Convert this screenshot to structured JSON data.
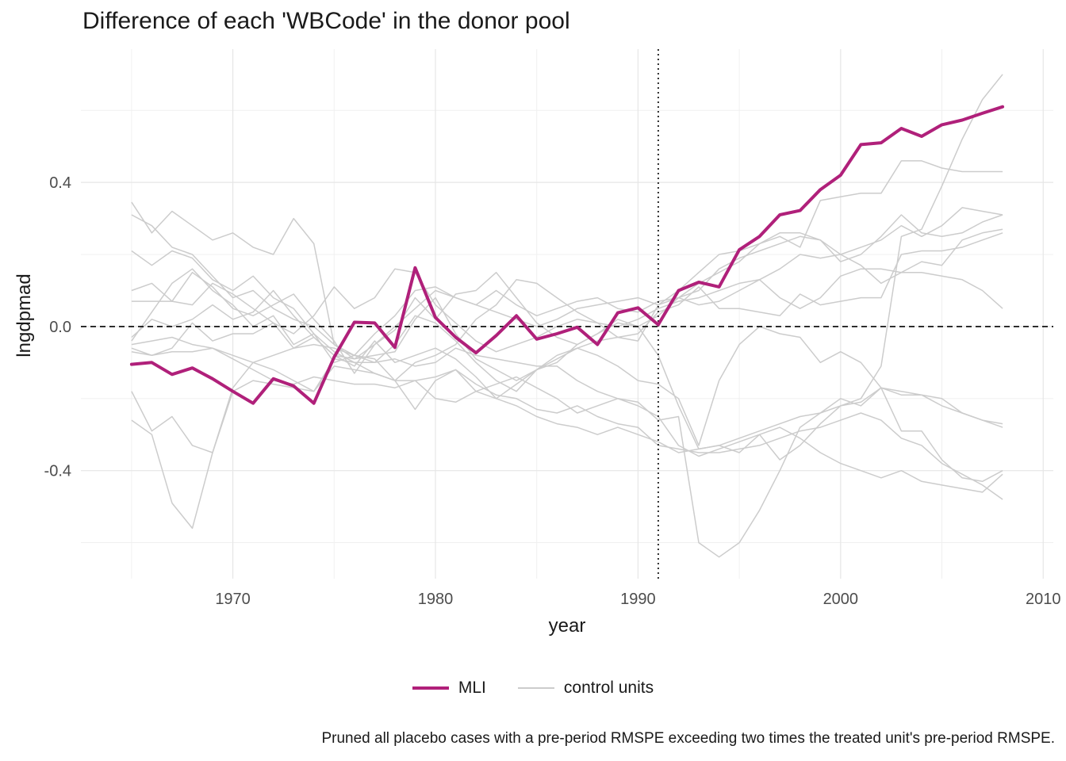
{
  "chart_data": {
    "type": "line",
    "title": "Difference of each 'WBCode' in the donor pool",
    "xlabel": "year",
    "ylabel": "lngdpmad",
    "xlim": [
      1962.5,
      2010.5
    ],
    "ylim": [
      -0.7,
      0.77
    ],
    "x_ticks": [
      1970,
      1980,
      1990,
      2000,
      2010
    ],
    "y_ticks": [
      -0.4,
      0.0,
      0.4
    ],
    "x_tick_labels": [
      "1970",
      "1980",
      "1990",
      "2000",
      "2010"
    ],
    "y_tick_labels": [
      "-0.4",
      "0.0",
      "0.4"
    ],
    "grid": true,
    "hline": 0.0,
    "vline": 1991,
    "legend_position": "bottom",
    "caption": "Pruned all placebo cases with a pre-period RMSPE exceeding two times the treated unit's pre-period RMSPE.",
    "treated": {
      "name": "MLI",
      "color": "#b0207a",
      "x": [
        1965,
        1966,
        1967,
        1968,
        1969,
        1970,
        1971,
        1972,
        1973,
        1974,
        1975,
        1976,
        1977,
        1978,
        1979,
        1980,
        1981,
        1982,
        1983,
        1984,
        1985,
        1986,
        1987,
        1988,
        1989,
        1990,
        1991,
        1992,
        1993,
        1994,
        1995,
        1996,
        1997,
        1998,
        1999,
        2000,
        2001,
        2002,
        2003,
        2004,
        2005,
        2006,
        2007,
        2008
      ],
      "y": [
        -0.105,
        -0.1,
        -0.133,
        -0.115,
        -0.145,
        -0.18,
        -0.213,
        -0.145,
        -0.165,
        -0.213,
        -0.085,
        0.012,
        0.01,
        -0.058,
        0.163,
        0.025,
        -0.03,
        -0.073,
        -0.025,
        0.03,
        -0.035,
        -0.02,
        -0.002,
        -0.05,
        0.038,
        0.052,
        0.005,
        0.1,
        0.123,
        0.11,
        0.213,
        0.25,
        0.31,
        0.322,
        0.38,
        0.42,
        0.505,
        0.51,
        0.55,
        0.528,
        0.56,
        0.573,
        0.592,
        0.61
      ]
    },
    "controls": {
      "name": "control units",
      "color": "#cccccc",
      "x_start": 1965,
      "series": [
        {
          "y": [
            0.345,
            0.26,
            0.32,
            0.28,
            0.24,
            0.26,
            0.22,
            0.2,
            0.3,
            0.23,
            -0.05,
            -0.08,
            -0.09,
            -0.15,
            -0.23,
            -0.15,
            -0.12,
            -0.18,
            -0.2,
            -0.22,
            -0.25,
            -0.27,
            -0.28,
            -0.3,
            -0.28,
            -0.3,
            -0.32,
            -0.35,
            -0.34,
            -0.33,
            -0.31,
            -0.29,
            -0.27,
            -0.25,
            -0.24,
            -0.22,
            -0.2,
            -0.11,
            0.25,
            0.27,
            0.39,
            0.52,
            0.63,
            0.7
          ]
        },
        {
          "y": [
            0.31,
            0.28,
            0.22,
            0.2,
            0.14,
            0.08,
            0.1,
            0.05,
            0.02,
            0.0,
            -0.05,
            -0.09,
            -0.05,
            0.0,
            0.05,
            0.1,
            0.08,
            0.06,
            0.04,
            0.02,
            0.0,
            0.02,
            0.05,
            0.06,
            0.07,
            0.08,
            0.06,
            0.08,
            0.1,
            0.16,
            0.19,
            0.21,
            0.23,
            0.25,
            0.24,
            0.18,
            0.2,
            0.25,
            0.31,
            0.26,
            0.25,
            0.26,
            0.29,
            0.31
          ]
        },
        {
          "y": [
            0.21,
            0.17,
            0.21,
            0.19,
            0.13,
            0.1,
            0.14,
            0.08,
            0.05,
            -0.02,
            -0.1,
            -0.08,
            -0.02,
            0.03,
            0.1,
            0.11,
            0.08,
            0.06,
            0.1,
            0.06,
            0.03,
            0.05,
            0.07,
            0.08,
            0.05,
            0.04,
            0.07,
            0.08,
            0.06,
            0.07,
            0.1,
            0.13,
            0.16,
            0.2,
            0.19,
            0.2,
            0.22,
            0.24,
            0.28,
            0.25,
            0.28,
            0.33,
            0.32,
            0.31
          ]
        },
        {
          "y": [
            0.1,
            0.12,
            0.07,
            0.15,
            0.11,
            0.05,
            0.03,
            0.06,
            0.09,
            0.02,
            -0.04,
            -0.13,
            -0.05,
            -0.01,
            0.08,
            0.02,
            0.09,
            0.1,
            0.15,
            0.08,
            0.01,
            -0.03,
            -0.05,
            -0.02,
            0.01,
            0.0,
            0.03,
            0.08,
            0.12,
            0.15,
            0.18,
            0.23,
            0.26,
            0.26,
            0.24,
            0.2,
            0.17,
            0.12,
            0.15,
            0.18,
            0.17,
            0.24,
            0.26,
            0.27
          ]
        },
        {
          "y": [
            0.07,
            0.07,
            0.07,
            0.06,
            0.12,
            0.09,
            0.05,
            0.01,
            -0.02,
            0.03,
            0.11,
            0.05,
            0.08,
            0.16,
            0.15,
            0.06,
            0.01,
            -0.04,
            -0.07,
            -0.05,
            -0.03,
            0.0,
            0.02,
            0.01,
            0.0,
            0.02,
            0.05,
            0.07,
            0.08,
            0.1,
            0.12,
            0.13,
            0.08,
            0.05,
            0.08,
            0.14,
            0.16,
            0.16,
            0.15,
            0.15,
            0.14,
            0.13,
            0.1,
            0.05
          ]
        },
        {
          "y": [
            -0.04,
            0.04,
            0.12,
            0.16,
            0.1,
            0.06,
            0.0,
            0.03,
            -0.05,
            -0.02,
            -0.07,
            -0.1,
            -0.13,
            -0.15,
            -0.1,
            -0.08,
            -0.05,
            0.02,
            0.06,
            0.13,
            0.12,
            0.08,
            0.04,
            0.01,
            -0.03,
            -0.04,
            0.06,
            0.1,
            0.15,
            0.2,
            0.21,
            0.23,
            0.25,
            0.22,
            0.35,
            0.36,
            0.37,
            0.37,
            0.46,
            0.46,
            0.44,
            0.43,
            0.43,
            0.43
          ]
        },
        {
          "y": [
            -0.03,
            0.02,
            0.0,
            0.02,
            0.06,
            0.02,
            0.04,
            0.1,
            0.03,
            -0.03,
            -0.08,
            -0.11,
            -0.04,
            -0.1,
            -0.08,
            -0.06,
            -0.09,
            -0.14,
            -0.2,
            -0.16,
            -0.12,
            -0.08,
            -0.06,
            -0.04,
            -0.03,
            -0.02,
            0.04,
            0.06,
            0.11,
            0.05,
            0.05,
            0.04,
            0.03,
            0.09,
            0.06,
            0.07,
            0.08,
            0.08,
            0.2,
            0.21,
            0.21,
            0.22,
            0.24,
            0.26
          ]
        },
        {
          "y": [
            -0.06,
            -0.08,
            -0.06,
            0.01,
            -0.04,
            -0.02,
            -0.02,
            0.01,
            -0.06,
            -0.03,
            -0.08,
            -0.09,
            -0.08,
            -0.07,
            0.02,
            0.08,
            -0.02,
            -0.09,
            -0.12,
            -0.15,
            -0.12,
            -0.09,
            -0.06,
            -0.08,
            -0.11,
            -0.15,
            -0.16,
            -0.2,
            -0.33,
            -0.15,
            -0.05,
            0.0,
            -0.02,
            -0.03,
            -0.1,
            -0.07,
            -0.1,
            -0.17,
            -0.19,
            -0.19,
            -0.2,
            -0.24,
            -0.26,
            -0.27
          ]
        },
        {
          "y": [
            -0.18,
            -0.29,
            -0.25,
            -0.33,
            -0.35,
            -0.17,
            -0.1,
            -0.12,
            -0.15,
            -0.18,
            -0.09,
            -0.1,
            -0.1,
            -0.05,
            0.03,
            0.01,
            -0.04,
            -0.1,
            -0.15,
            -0.18,
            -0.12,
            -0.1,
            -0.05,
            -0.02,
            0.02,
            0.0,
            -0.08,
            -0.22,
            -0.34,
            -0.33,
            -0.35,
            -0.3,
            -0.37,
            -0.33,
            -0.27,
            -0.22,
            -0.21,
            -0.17,
            -0.29,
            -0.29,
            -0.37,
            -0.42,
            -0.43,
            -0.4
          ]
        },
        {
          "y": [
            -0.26,
            -0.3,
            -0.49,
            -0.56,
            -0.35,
            -0.18,
            -0.15,
            -0.16,
            -0.17,
            -0.18,
            -0.11,
            -0.12,
            -0.13,
            -0.15,
            -0.15,
            -0.2,
            -0.21,
            -0.18,
            -0.16,
            -0.14,
            -0.17,
            -0.2,
            -0.24,
            -0.22,
            -0.2,
            -0.21,
            -0.26,
            -0.25,
            -0.6,
            -0.64,
            -0.6,
            -0.51,
            -0.4,
            -0.28,
            -0.24,
            -0.2,
            -0.22,
            -0.17,
            -0.18,
            -0.19,
            -0.22,
            -0.24,
            -0.26,
            -0.28
          ]
        },
        {
          "y": [
            -0.07,
            -0.08,
            -0.07,
            -0.07,
            -0.06,
            -0.09,
            -0.12,
            -0.15,
            -0.16,
            -0.14,
            -0.15,
            -0.16,
            -0.16,
            -0.17,
            -0.15,
            -0.14,
            -0.12,
            -0.16,
            -0.19,
            -0.2,
            -0.23,
            -0.24,
            -0.22,
            -0.25,
            -0.27,
            -0.28,
            -0.33,
            -0.34,
            -0.35,
            -0.35,
            -0.34,
            -0.33,
            -0.31,
            -0.29,
            -0.28,
            -0.26,
            -0.24,
            -0.26,
            -0.31,
            -0.33,
            -0.38,
            -0.41,
            -0.44,
            -0.48
          ]
        },
        {
          "y": [
            -0.05,
            -0.04,
            -0.03,
            -0.05,
            -0.06,
            -0.08,
            -0.1,
            -0.08,
            -0.06,
            -0.05,
            -0.06,
            -0.08,
            -0.1,
            -0.09,
            -0.11,
            -0.1,
            -0.06,
            -0.08,
            -0.09,
            -0.1,
            -0.11,
            -0.11,
            -0.15,
            -0.18,
            -0.2,
            -0.22,
            -0.25,
            -0.33,
            -0.36,
            -0.34,
            -0.32,
            -0.3,
            -0.28,
            -0.31,
            -0.35,
            -0.38,
            -0.4,
            -0.42,
            -0.4,
            -0.43,
            -0.44,
            -0.45,
            -0.46,
            -0.41
          ]
        }
      ]
    }
  }
}
